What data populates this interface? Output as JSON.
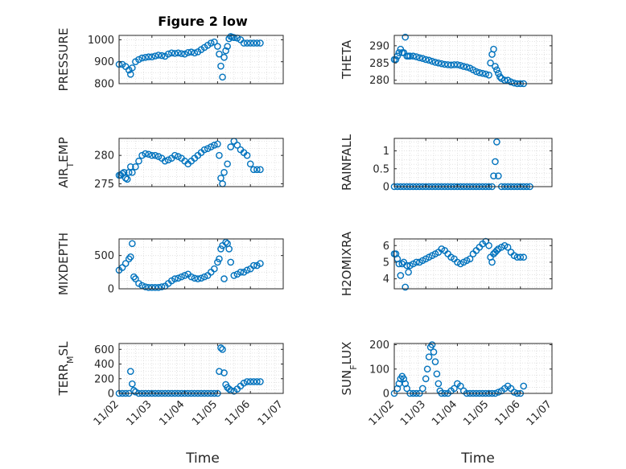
{
  "figure": {
    "title": "Figure 2 low"
  },
  "style": {
    "marker": "#0072bd",
    "axes": "#262626",
    "grid": "#dcdcdc"
  },
  "chart_data": [
    {
      "type": "scatter",
      "panel": "pressure",
      "ylabel": "PRESSURE",
      "xlim": [
        "11/02",
        "11/07"
      ],
      "ylim": [
        800,
        1020
      ],
      "yticks": [
        800,
        900,
        1000
      ],
      "xticks": [
        "11/02",
        "11/03",
        "11/04",
        "11/05",
        "11/06",
        "11/07"
      ],
      "x": [
        2.0,
        2.1,
        2.2,
        2.3,
        2.35,
        2.4,
        2.5,
        2.6,
        2.7,
        2.8,
        2.9,
        3.0,
        3.1,
        3.2,
        3.3,
        3.4,
        3.5,
        3.6,
        3.7,
        3.8,
        3.9,
        4.0,
        4.1,
        4.2,
        4.3,
        4.4,
        4.5,
        4.6,
        4.7,
        4.8,
        4.9,
        5.0,
        5.05,
        5.1,
        5.15,
        5.2,
        5.25,
        5.3,
        5.35,
        5.4,
        5.45,
        5.5,
        5.6,
        5.7,
        5.8,
        5.9,
        6.0,
        6.1,
        6.2,
        6.3
      ],
      "y": [
        888,
        888,
        878,
        862,
        843,
        872,
        900,
        910,
        917,
        920,
        922,
        922,
        926,
        930,
        928,
        925,
        935,
        940,
        938,
        940,
        937,
        935,
        942,
        944,
        940,
        945,
        955,
        965,
        975,
        985,
        990,
        970,
        935,
        880,
        830,
        920,
        950,
        970,
        1005,
        1015,
        1012,
        1010,
        1008,
        1000,
        985,
        985,
        985,
        985,
        985,
        985
      ],
      "grid": true
    },
    {
      "type": "scatter",
      "panel": "theta",
      "ylabel": "THETA",
      "xlim": [
        "11/02",
        "11/07"
      ],
      "ylim": [
        279,
        293
      ],
      "yticks": [
        280,
        285,
        290
      ],
      "xticks": [
        "11/02",
        "11/03",
        "11/04",
        "11/05",
        "11/06",
        "11/07"
      ],
      "x": [
        2.0,
        2.05,
        2.1,
        2.15,
        2.2,
        2.25,
        2.3,
        2.35,
        2.4,
        2.45,
        2.5,
        2.6,
        2.7,
        2.8,
        2.9,
        3.0,
        3.1,
        3.2,
        3.3,
        3.4,
        3.5,
        3.6,
        3.7,
        3.8,
        3.9,
        4.0,
        4.1,
        4.2,
        4.3,
        4.4,
        4.5,
        4.6,
        4.7,
        4.8,
        4.9,
        5.0,
        5.05,
        5.1,
        5.15,
        5.2,
        5.25,
        5.3,
        5.35,
        5.4,
        5.5,
        5.6,
        5.7,
        5.8,
        5.9,
        6.0,
        6.1
      ],
      "y": [
        286,
        286,
        287,
        288,
        289,
        288,
        288,
        292.5,
        287,
        287,
        287,
        287,
        286.8,
        286.5,
        286.3,
        286,
        285.8,
        285.5,
        285.2,
        285,
        284.8,
        284.6,
        284.5,
        284.4,
        284.5,
        284.5,
        284.3,
        284,
        283.8,
        283.5,
        283,
        282.5,
        282.2,
        282,
        281.8,
        281.5,
        285,
        287.5,
        289,
        284,
        283,
        282,
        281,
        280.5,
        280,
        280,
        279.5,
        279.2,
        279,
        279,
        279
      ],
      "grid": true
    },
    {
      "type": "scatter",
      "panel": "air-temp",
      "ylabel": "AIR_TEMP",
      "xlim": [
        "11/02",
        "11/07"
      ],
      "ylim": [
        274.5,
        283
      ],
      "yticks": [
        275,
        280
      ],
      "xticks": [
        "11/02",
        "11/03",
        "11/04",
        "11/05",
        "11/06",
        "11/07"
      ],
      "x": [
        2.0,
        2.05,
        2.1,
        2.15,
        2.2,
        2.25,
        2.3,
        2.35,
        2.4,
        2.5,
        2.6,
        2.7,
        2.8,
        2.9,
        3.0,
        3.1,
        3.2,
        3.3,
        3.4,
        3.5,
        3.6,
        3.7,
        3.8,
        3.9,
        4.0,
        4.1,
        4.2,
        4.3,
        4.4,
        4.5,
        4.6,
        4.7,
        4.8,
        4.9,
        5.0,
        5.05,
        5.1,
        5.15,
        5.2,
        5.3,
        5.4,
        5.5,
        5.6,
        5.7,
        5.8,
        5.9,
        6.0,
        6.1,
        6.2,
        6.3
      ],
      "y": [
        276.5,
        276.5,
        276.8,
        277,
        276,
        275.8,
        277,
        278,
        277,
        278,
        279,
        280,
        280.3,
        280.2,
        280,
        280,
        279.8,
        279.5,
        279,
        279.2,
        279.5,
        280,
        279.8,
        279.5,
        279,
        278.5,
        279,
        279.5,
        280,
        280.5,
        281,
        281.2,
        281.5,
        281.8,
        282,
        280,
        276,
        275,
        277,
        278.5,
        281.5,
        282.5,
        281.8,
        281,
        280.5,
        280,
        278.5,
        277.5,
        277.5,
        277.5
      ],
      "grid": true
    },
    {
      "type": "scatter",
      "panel": "rainfall",
      "ylabel": "RAINFALL",
      "xlim": [
        "11/02",
        "11/07"
      ],
      "ylim": [
        0,
        1.35
      ],
      "yticks": [
        0,
        0.5,
        1
      ],
      "ytick_labels": [
        "0",
        "0.5",
        "1"
      ],
      "xticks": [
        "11/02",
        "11/03",
        "11/04",
        "11/05",
        "11/06",
        "11/07"
      ],
      "x": [
        2.0,
        2.1,
        2.2,
        2.3,
        2.4,
        2.5,
        2.6,
        2.7,
        2.8,
        2.9,
        3.0,
        3.1,
        3.2,
        3.3,
        3.4,
        3.5,
        3.6,
        3.7,
        3.8,
        3.9,
        4.0,
        4.1,
        4.2,
        4.3,
        4.4,
        4.5,
        4.6,
        4.7,
        4.8,
        4.9,
        5.0,
        5.1,
        5.15,
        5.2,
        5.25,
        5.3,
        5.4,
        5.5,
        5.6,
        5.7,
        5.8,
        5.9,
        6.0,
        6.1,
        6.2,
        6.3
      ],
      "y": [
        0,
        0,
        0,
        0,
        0,
        0,
        0,
        0,
        0,
        0,
        0,
        0,
        0,
        0,
        0,
        0,
        0,
        0,
        0,
        0,
        0,
        0,
        0,
        0,
        0,
        0,
        0,
        0,
        0,
        0,
        0,
        0,
        0.3,
        0.7,
        1.25,
        0.3,
        0,
        0,
        0,
        0,
        0,
        0,
        0,
        0,
        0,
        0
      ],
      "grid": true
    },
    {
      "type": "scatter",
      "panel": "mixdepth",
      "ylabel": "MIXDEPTH",
      "xlim": [
        "11/02",
        "11/07"
      ],
      "ylim": [
        0,
        750
      ],
      "yticks": [
        0,
        500
      ],
      "xticks": [
        "11/02",
        "11/03",
        "11/04",
        "11/05",
        "11/06",
        "11/07"
      ],
      "x": [
        2.0,
        2.1,
        2.2,
        2.3,
        2.35,
        2.4,
        2.45,
        2.5,
        2.6,
        2.7,
        2.8,
        2.9,
        3.0,
        3.1,
        3.2,
        3.3,
        3.4,
        3.5,
        3.6,
        3.7,
        3.8,
        3.9,
        4.0,
        4.1,
        4.2,
        4.3,
        4.4,
        4.5,
        4.6,
        4.7,
        4.8,
        4.9,
        5.0,
        5.05,
        5.1,
        5.15,
        5.2,
        5.25,
        5.3,
        5.35,
        5.4,
        5.5,
        5.6,
        5.7,
        5.8,
        5.9,
        6.0,
        6.1,
        6.2,
        6.3
      ],
      "y": [
        280,
        320,
        380,
        450,
        480,
        680,
        180,
        150,
        80,
        50,
        30,
        20,
        20,
        20,
        20,
        30,
        40,
        80,
        120,
        150,
        160,
        180,
        200,
        220,
        180,
        160,
        150,
        160,
        180,
        200,
        250,
        300,
        400,
        450,
        600,
        650,
        150,
        700,
        680,
        600,
        400,
        200,
        220,
        250,
        250,
        280,
        300,
        350,
        350,
        380
      ],
      "grid": true
    },
    {
      "type": "scatter",
      "panel": "h2omixra",
      "ylabel": "H2OMIXRA",
      "xlim": [
        "11/02",
        "11/07"
      ],
      "ylim": [
        3.4,
        6.4
      ],
      "yticks": [
        4,
        5,
        6
      ],
      "xticks": [
        "11/02",
        "11/03",
        "11/04",
        "11/05",
        "11/06",
        "11/07"
      ],
      "x": [
        2.0,
        2.05,
        2.1,
        2.15,
        2.2,
        2.25,
        2.3,
        2.35,
        2.4,
        2.45,
        2.5,
        2.6,
        2.7,
        2.8,
        2.9,
        3.0,
        3.1,
        3.2,
        3.3,
        3.4,
        3.5,
        3.6,
        3.7,
        3.8,
        3.9,
        4.0,
        4.1,
        4.2,
        4.3,
        4.4,
        4.5,
        4.6,
        4.7,
        4.8,
        4.9,
        5.0,
        5.05,
        5.1,
        5.15,
        5.2,
        5.25,
        5.3,
        5.4,
        5.5,
        5.6,
        5.7,
        5.8,
        5.9,
        6.0,
        6.1
      ],
      "y": [
        5.5,
        5.5,
        5.2,
        4.9,
        4.2,
        4.9,
        5.0,
        3.5,
        4.8,
        4.4,
        4.8,
        4.9,
        5.0,
        5.0,
        5.1,
        5.2,
        5.3,
        5.4,
        5.5,
        5.6,
        5.8,
        5.7,
        5.5,
        5.3,
        5.2,
        5.0,
        4.9,
        5.0,
        5.1,
        5.2,
        5.5,
        5.7,
        5.9,
        6.1,
        6.25,
        6.0,
        5.3,
        5.0,
        5.5,
        5.6,
        5.7,
        5.8,
        5.9,
        6.0,
        5.9,
        5.6,
        5.4,
        5.3,
        5.3,
        5.3
      ],
      "grid": true
    },
    {
      "type": "scatter",
      "panel": "terr-msl",
      "ylabel": "TERR_MSL",
      "xlim": [
        "11/02",
        "11/07"
      ],
      "ylim": [
        0,
        680
      ],
      "yticks": [
        0,
        200,
        400,
        600
      ],
      "xticks": [
        "11/02",
        "11/03",
        "11/04",
        "11/05",
        "11/06",
        "11/07"
      ],
      "x": [
        2.0,
        2.1,
        2.2,
        2.3,
        2.35,
        2.4,
        2.45,
        2.5,
        2.6,
        2.7,
        2.8,
        2.9,
        3.0,
        3.1,
        3.2,
        3.3,
        3.4,
        3.5,
        3.6,
        3.7,
        3.8,
        3.9,
        4.0,
        4.1,
        4.2,
        4.3,
        4.4,
        4.5,
        4.6,
        4.7,
        4.8,
        4.9,
        5.0,
        5.05,
        5.1,
        5.15,
        5.2,
        5.25,
        5.3,
        5.35,
        5.4,
        5.5,
        5.6,
        5.7,
        5.8,
        5.9,
        6.0,
        6.1,
        6.2,
        6.3
      ],
      "y": [
        0,
        0,
        0,
        0,
        300,
        130,
        40,
        20,
        0,
        0,
        0,
        0,
        0,
        0,
        0,
        0,
        0,
        0,
        0,
        0,
        0,
        0,
        0,
        0,
        0,
        0,
        0,
        0,
        0,
        0,
        0,
        0,
        0,
        300,
        620,
        600,
        280,
        120,
        80,
        60,
        40,
        30,
        60,
        100,
        140,
        160,
        160,
        160,
        160,
        160
      ],
      "grid": true
    },
    {
      "type": "scatter",
      "panel": "sun-flux",
      "ylabel": "SUN_FLUX",
      "xlim": [
        "11/02",
        "11/07"
      ],
      "ylim": [
        0,
        205
      ],
      "yticks": [
        0,
        100,
        200
      ],
      "xticks": [
        "11/02",
        "11/03",
        "11/04",
        "11/05",
        "11/06",
        "11/07"
      ],
      "x": [
        2.0,
        2.1,
        2.15,
        2.2,
        2.25,
        2.3,
        2.35,
        2.4,
        2.5,
        2.6,
        2.7,
        2.8,
        2.9,
        3.0,
        3.05,
        3.1,
        3.15,
        3.2,
        3.25,
        3.3,
        3.35,
        3.4,
        3.45,
        3.5,
        3.6,
        3.7,
        3.8,
        3.9,
        4.0,
        4.1,
        4.2,
        4.3,
        4.4,
        4.5,
        4.6,
        4.7,
        4.8,
        4.9,
        5.0,
        5.1,
        5.2,
        5.3,
        5.4,
        5.5,
        5.6,
        5.7,
        5.8,
        5.9,
        6.0,
        6.1
      ],
      "y": [
        0,
        20,
        40,
        60,
        70,
        60,
        40,
        20,
        0,
        0,
        0,
        0,
        20,
        60,
        100,
        150,
        190,
        200,
        170,
        130,
        80,
        40,
        10,
        0,
        0,
        0,
        10,
        20,
        40,
        30,
        10,
        0,
        0,
        0,
        0,
        0,
        0,
        0,
        0,
        0,
        0,
        5,
        10,
        20,
        30,
        20,
        5,
        0,
        0,
        30
      ],
      "grid": true
    }
  ],
  "xlabels": {
    "bottom_left": "Time",
    "bottom_right": "Time"
  }
}
